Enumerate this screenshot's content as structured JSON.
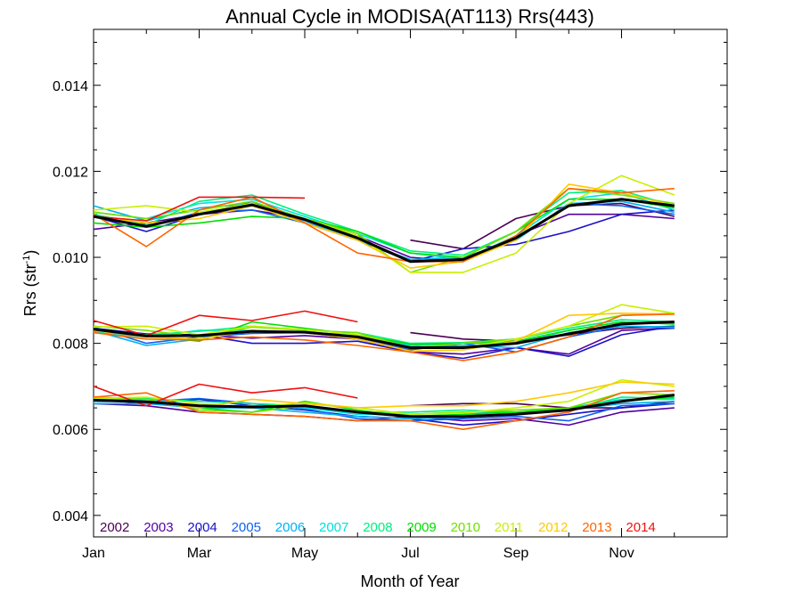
{
  "chart_data": {
    "type": "line",
    "title": "Annual Cycle in MODISA(AT113) Rrs(443)",
    "xlabel": "Month of Year",
    "ylabel": "Rrs (str",
    "ylabel_sup": "-1",
    "ylabel_suffix": ")",
    "xlim": [
      1,
      13
    ],
    "ylim": [
      0.0035,
      0.0153
    ],
    "x_ticks": [
      {
        "value": 1,
        "label": "Jan"
      },
      {
        "value": 3,
        "label": "Mar"
      },
      {
        "value": 5,
        "label": "May"
      },
      {
        "value": 7,
        "label": "Jul"
      },
      {
        "value": 9,
        "label": "Sep"
      },
      {
        "value": 11,
        "label": "Nov"
      }
    ],
    "y_ticks": [
      {
        "value": 0.004,
        "label": "0.004"
      },
      {
        "value": 0.006,
        "label": "0.006"
      },
      {
        "value": 0.008,
        "label": "0.008"
      },
      {
        "value": 0.01,
        "label": "0.010"
      },
      {
        "value": 0.012,
        "label": "0.012"
      },
      {
        "value": 0.014,
        "label": "0.014"
      }
    ],
    "x": [
      1,
      2,
      3,
      4,
      5,
      6,
      7,
      8,
      9,
      10,
      11,
      12
    ],
    "legend_placement": "bottom-left",
    "series": [
      {
        "name": "2002",
        "color": "#4a0052",
        "groups": [
          [
            null,
            null,
            null,
            null,
            null,
            null,
            0.0104,
            0.0102,
            0.0109,
            0.0112,
            0.01125,
            0.01095
          ],
          [
            null,
            null,
            null,
            null,
            null,
            null,
            0.00825,
            0.0081,
            0.00805,
            0.0082,
            0.00835,
            0.0084
          ],
          [
            null,
            null,
            null,
            null,
            null,
            null,
            0.00655,
            0.0066,
            0.0066,
            0.0065,
            0.0065,
            0.00665
          ]
        ]
      },
      {
        "name": "2003",
        "color": "#5200a0",
        "groups": [
          [
            0.01065,
            0.0108,
            0.011,
            0.0111,
            0.0109,
            0.0105,
            0.01,
            0.0099,
            0.0105,
            0.011,
            0.011,
            0.0109
          ],
          [
            0.0083,
            0.00822,
            0.0082,
            0.00812,
            0.00818,
            0.0081,
            0.0078,
            0.00775,
            0.0079,
            0.00775,
            0.0083,
            0.00835
          ],
          [
            0.0066,
            0.00655,
            0.0064,
            0.00635,
            0.0063,
            0.0062,
            0.0063,
            0.0062,
            0.00625,
            0.0061,
            0.0064,
            0.0065
          ]
        ]
      },
      {
        "name": "2004",
        "color": "#1a10c8",
        "groups": [
          [
            0.01095,
            0.0106,
            0.011,
            0.0113,
            0.0108,
            0.0104,
            0.0099,
            0.0102,
            0.0103,
            0.0106,
            0.011,
            0.0111
          ],
          [
            0.00835,
            0.00822,
            0.0082,
            0.008,
            0.008,
            0.00805,
            0.0078,
            0.00765,
            0.0079,
            0.0077,
            0.0082,
            0.0084
          ],
          [
            0.0067,
            0.0066,
            0.0067,
            0.00655,
            0.00645,
            0.0063,
            0.00625,
            0.0061,
            0.0062,
            0.00635,
            0.0065,
            0.0066
          ]
        ]
      },
      {
        "name": "2005",
        "color": "#1060f0",
        "groups": [
          [
            0.011,
            0.0107,
            0.01105,
            0.0111,
            0.0108,
            0.01045,
            0.0099,
            0.00995,
            0.0104,
            0.01125,
            0.0112,
            0.011
          ],
          [
            0.00838,
            0.008,
            0.00815,
            0.00823,
            0.00825,
            0.0081,
            0.00785,
            0.008,
            0.0078,
            0.00815,
            0.0084,
            0.00835
          ],
          [
            0.00665,
            0.00665,
            0.00672,
            0.0066,
            0.00648,
            0.00625,
            0.0062,
            0.00625,
            0.0063,
            0.0062,
            0.00655,
            0.0066
          ]
        ]
      },
      {
        "name": "2006",
        "color": "#00b0f0",
        "groups": [
          [
            0.0112,
            0.01085,
            0.01115,
            0.01125,
            0.01085,
            0.0104,
            0.00995,
            0.01,
            0.0104,
            0.01125,
            0.0113,
            0.01105
          ],
          [
            0.0083,
            0.00795,
            0.0081,
            0.0083,
            0.00825,
            0.00815,
            0.00792,
            0.00795,
            0.0079,
            0.00825,
            0.0084,
            0.00838
          ],
          [
            0.0066,
            0.0066,
            0.0065,
            0.0065,
            0.0064,
            0.0063,
            0.00625,
            0.00628,
            0.00635,
            0.00645,
            0.0066,
            0.00665
          ]
        ]
      },
      {
        "name": "2007",
        "color": "#00e0e0",
        "groups": [
          [
            0.01105,
            0.0109,
            0.01125,
            0.01135,
            0.01095,
            0.01055,
            0.0101,
            0.00995,
            0.0105,
            0.01135,
            0.0115,
            0.0111
          ],
          [
            0.00825,
            0.00815,
            0.0083,
            0.0083,
            0.00825,
            0.0082,
            0.00795,
            0.008,
            0.008,
            0.0083,
            0.0085,
            0.00845
          ],
          [
            0.00665,
            0.0067,
            0.00655,
            0.00655,
            0.0065,
            0.00635,
            0.00635,
            0.0064,
            0.0064,
            0.0065,
            0.0067,
            0.0067
          ]
        ]
      },
      {
        "name": "2008",
        "color": "#00f080",
        "groups": [
          [
            0.011,
            0.01075,
            0.0113,
            0.01145,
            0.011,
            0.0106,
            0.01015,
            0.01005,
            0.0106,
            0.0115,
            0.01155,
            0.0112
          ],
          [
            0.00828,
            0.0082,
            0.00828,
            0.0084,
            0.0083,
            0.00825,
            0.008,
            0.00802,
            0.0081,
            0.00835,
            0.00855,
            0.0085
          ],
          [
            0.00668,
            0.00672,
            0.00665,
            0.0066,
            0.00655,
            0.0064,
            0.0064,
            0.00645,
            0.0064,
            0.00645,
            0.00675,
            0.00672
          ]
        ]
      },
      {
        "name": "2009",
        "color": "#00e000",
        "groups": [
          [
            0.0108,
            0.0107,
            0.0108,
            0.01095,
            0.0109,
            0.0106,
            0.0101,
            0.01,
            0.0106,
            0.01135,
            0.01135,
            0.01115
          ],
          [
            0.00832,
            0.00818,
            0.00805,
            0.0085,
            0.00835,
            0.0082,
            0.00798,
            0.008,
            0.00805,
            0.0083,
            0.0085,
            0.00845
          ],
          [
            0.0067,
            0.00665,
            0.0065,
            0.0064,
            0.00665,
            0.00645,
            0.0063,
            0.00635,
            0.0064,
            0.0065,
            0.00665,
            0.00675
          ]
        ]
      },
      {
        "name": "2010",
        "color": "#70e000",
        "groups": [
          [
            0.01105,
            0.0109,
            0.0111,
            0.0113,
            0.0109,
            0.01055,
            0.00965,
            0.01,
            0.0106,
            0.0116,
            0.01145,
            0.01125
          ],
          [
            0.0084,
            0.0083,
            0.00815,
            0.00838,
            0.0083,
            0.00825,
            0.0079,
            0.008,
            0.0081,
            0.0084,
            0.00865,
            0.0087
          ],
          [
            0.00675,
            0.0067,
            0.00645,
            0.0064,
            0.00655,
            0.0064,
            0.00635,
            0.0064,
            0.00645,
            0.0065,
            0.00685,
            0.0068
          ]
        ]
      },
      {
        "name": "2011",
        "color": "#c8f000",
        "groups": [
          [
            0.0111,
            0.0112,
            0.01105,
            0.01125,
            0.0109,
            0.0105,
            0.00965,
            0.00965,
            0.0101,
            0.01125,
            0.0119,
            0.01145
          ],
          [
            0.00838,
            0.0084,
            0.0082,
            0.0084,
            0.00832,
            0.0082,
            0.0079,
            0.0079,
            0.0081,
            0.0084,
            0.0089,
            0.0087
          ],
          [
            0.00672,
            0.00675,
            0.0066,
            0.0065,
            0.00662,
            0.0065,
            0.00635,
            0.00638,
            0.0065,
            0.00665,
            0.00715,
            0.007
          ]
        ]
      },
      {
        "name": "2012",
        "color": "#ffc800",
        "groups": [
          [
            0.01095,
            0.0108,
            0.0109,
            0.0112,
            0.0108,
            0.0104,
            0.00975,
            0.0099,
            0.0104,
            0.0117,
            0.0115,
            0.0112
          ],
          [
            0.0083,
            0.00815,
            0.0081,
            0.0083,
            0.00825,
            0.0081,
            0.00782,
            0.00785,
            0.00805,
            0.00865,
            0.0087,
            0.00868
          ],
          [
            0.0067,
            0.00665,
            0.0065,
            0.0067,
            0.0066,
            0.0065,
            0.00655,
            0.00655,
            0.00665,
            0.00685,
            0.0071,
            0.00705
          ]
        ]
      },
      {
        "name": "2013",
        "color": "#ff6400",
        "groups": [
          [
            0.011,
            0.01025,
            0.0111,
            0.0114,
            0.0108,
            0.0101,
            0.0099,
            0.0099,
            0.0105,
            0.0116,
            0.0115,
            0.0116
          ],
          [
            0.00825,
            0.0081,
            0.00808,
            0.00815,
            0.00808,
            0.00795,
            0.0078,
            0.0076,
            0.0078,
            0.00815,
            0.00865,
            0.00868
          ],
          [
            0.00675,
            0.00685,
            0.0064,
            0.00635,
            0.0063,
            0.0062,
            0.0062,
            0.006,
            0.0062,
            0.0064,
            0.00685,
            0.0069
          ]
        ]
      },
      {
        "name": "2014",
        "color": "#f01010",
        "groups": [
          [
            0.01095,
            0.01085,
            0.0114,
            0.0114,
            0.01138,
            null,
            null,
            null,
            null,
            null,
            null,
            null
          ],
          [
            0.00853,
            0.00818,
            0.00865,
            0.00853,
            0.00875,
            0.0085,
            null,
            null,
            null,
            null,
            null,
            null
          ],
          [
            0.007,
            0.00655,
            0.00705,
            0.00685,
            0.00697,
            0.00673,
            null,
            null,
            null,
            null,
            null,
            null
          ]
        ]
      },
      {
        "name": "Mean",
        "legend": false,
        "color": "#000000",
        "width": 3,
        "groups": [
          [
            0.01095,
            0.01072,
            0.011,
            0.01122,
            0.01088,
            0.01045,
            0.0099,
            0.00995,
            0.01045,
            0.0112,
            0.01135,
            0.0112
          ],
          [
            0.00833,
            0.00817,
            0.00818,
            0.00828,
            0.00826,
            0.00815,
            0.0079,
            0.0079,
            0.008,
            0.00822,
            0.00845,
            0.0085
          ],
          [
            0.00668,
            0.00664,
            0.00655,
            0.00652,
            0.00655,
            0.0064,
            0.0063,
            0.0063,
            0.00635,
            0.00645,
            0.00665,
            0.0068
          ]
        ]
      }
    ]
  }
}
